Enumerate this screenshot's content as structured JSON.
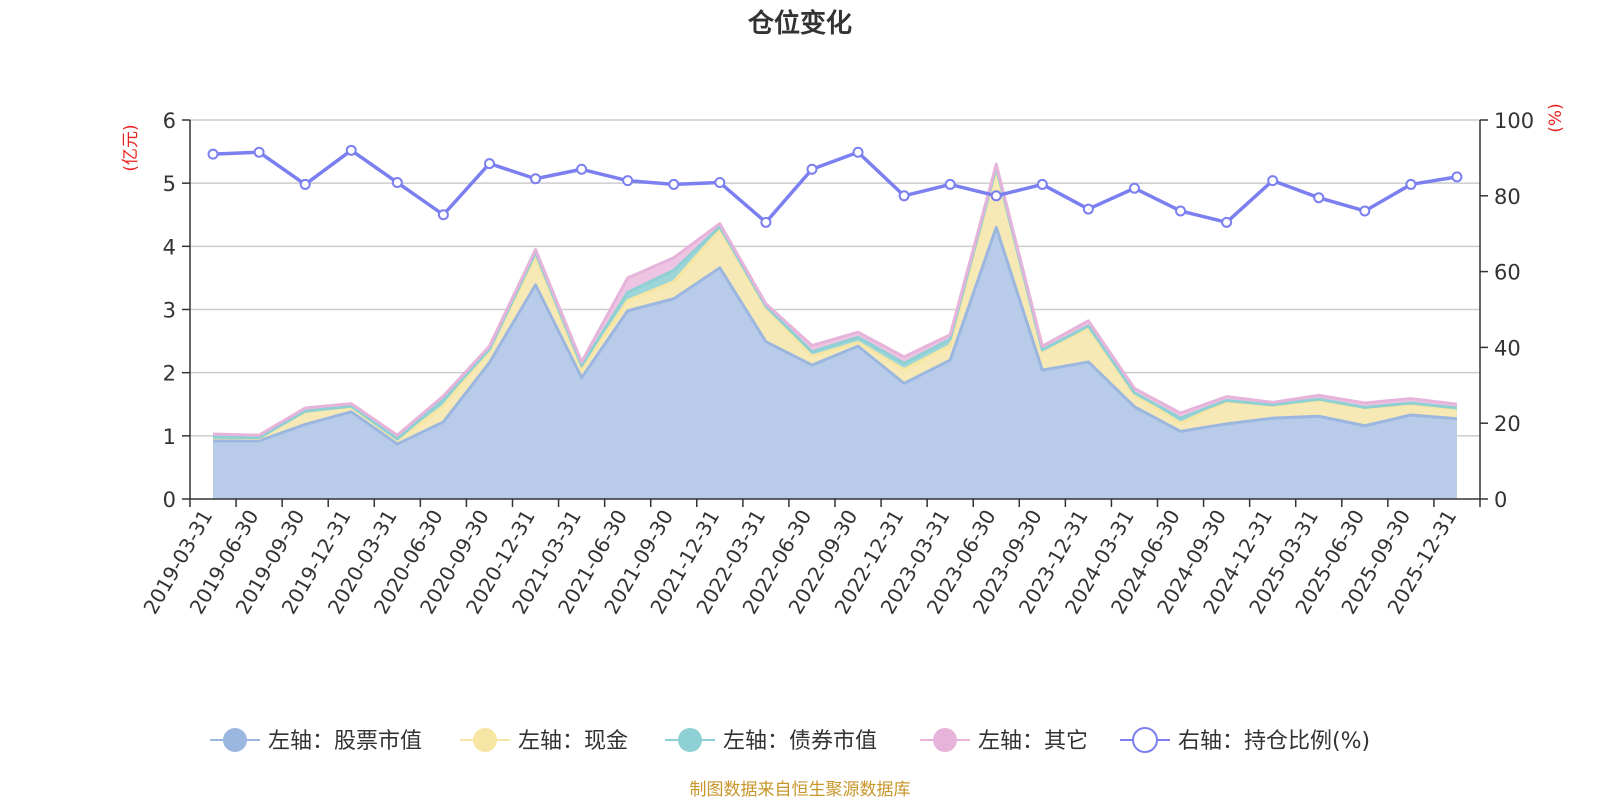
{
  "chart_data": {
    "type": "area",
    "title": "仓位变化",
    "left_axis": {
      "unit_label": "(亿元)",
      "ylim": [
        0,
        6
      ],
      "ticks": [
        "0",
        "1",
        "2",
        "3",
        "4",
        "5",
        "6"
      ]
    },
    "right_axis": {
      "unit_label": "(%)",
      "ylim": [
        0,
        100
      ],
      "ticks": [
        "0",
        "20",
        "40",
        "60",
        "80",
        "100"
      ]
    },
    "categories": [
      "2019-03-31",
      "2019-06-30",
      "2019-09-30",
      "2019-12-31",
      "2020-03-31",
      "2020-06-30",
      "2020-09-30",
      "2020-12-31",
      "2021-03-31",
      "2021-06-30",
      "2021-09-30",
      "2021-12-31",
      "2022-03-31",
      "2022-06-30",
      "2022-09-30",
      "2022-12-31",
      "2023-03-31",
      "2023-06-30",
      "2023-09-30",
      "2023-12-31",
      "2024-03-31",
      "2024-06-30",
      "2024-09-30",
      "2024-12-31",
      "2025-03-31",
      "2025-06-30",
      "2025-09-30",
      "2025-12-31"
    ],
    "series": [
      {
        "name": "左轴：股票市值",
        "axis": "left",
        "stack": true,
        "color": "#9bb7e0",
        "fill": "#b8cbe8",
        "values": [
          0.92,
          0.92,
          1.18,
          1.38,
          0.87,
          1.22,
          2.16,
          3.39,
          1.92,
          2.98,
          3.17,
          3.66,
          2.49,
          2.12,
          2.42,
          1.83,
          2.2,
          4.3,
          2.04,
          2.17,
          1.46,
          1.07,
          1.19,
          1.28,
          1.31,
          1.16,
          1.33,
          1.27
        ]
      },
      {
        "name": "左轴：现金",
        "axis": "left",
        "stack": true,
        "color": "#f7e5a3",
        "fill": "#f7e9b6",
        "values": [
          0.05,
          0.04,
          0.2,
          0.08,
          0.06,
          0.25,
          0.19,
          0.45,
          0.14,
          0.16,
          0.27,
          0.6,
          0.53,
          0.14,
          0.06,
          0.22,
          0.23,
          0.92,
          0.3,
          0.53,
          0.19,
          0.13,
          0.35,
          0.2,
          0.25,
          0.28,
          0.17,
          0.15
        ]
      },
      {
        "name": "左轴：债券市值",
        "axis": "left",
        "stack": true,
        "color": "#8fd0d4",
        "fill": "#9dd6d9",
        "values": [
          0.01,
          0.01,
          0.01,
          0.01,
          0.02,
          0.1,
          0.02,
          0.06,
          0.05,
          0.13,
          0.18,
          0.05,
          0.03,
          0.07,
          0.08,
          0.1,
          0.1,
          0.03,
          0.02,
          0.04,
          0.03,
          0.08,
          0.02,
          0.01,
          0.02,
          0.01,
          0.02,
          0.02
        ]
      },
      {
        "name": "左轴：其它",
        "axis": "left",
        "stack": true,
        "color": "#e6b3da",
        "fill": "#edc4e2",
        "values": [
          0.05,
          0.04,
          0.05,
          0.04,
          0.06,
          0.06,
          0.05,
          0.05,
          0.06,
          0.23,
          0.2,
          0.05,
          0.04,
          0.1,
          0.08,
          0.1,
          0.07,
          0.05,
          0.06,
          0.08,
          0.07,
          0.08,
          0.06,
          0.04,
          0.06,
          0.07,
          0.07,
          0.06
        ]
      },
      {
        "name": "右轴：持仓比例(%)",
        "axis": "right",
        "stack": false,
        "color": "#7b7ff0",
        "values": [
          91,
          91.5,
          83,
          92,
          83.5,
          75,
          88.5,
          84.5,
          87,
          84,
          83,
          83.5,
          73,
          87,
          91.5,
          80,
          83,
          80,
          83,
          76.5,
          82,
          76,
          73,
          84,
          79.5,
          76,
          83,
          85
        ]
      }
    ]
  },
  "footer": {
    "source_text": "制图数据来自恒生聚源数据库"
  }
}
